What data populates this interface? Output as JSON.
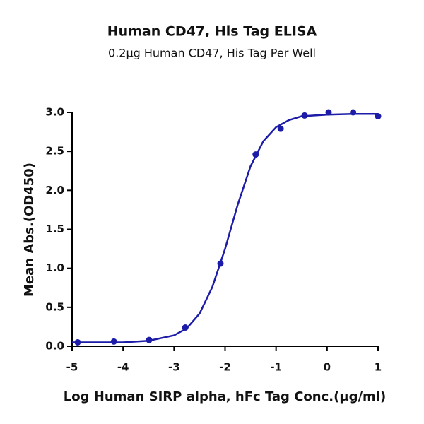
{
  "chart_data": {
    "type": "scatter",
    "title": "Human CD47, His Tag ELISA",
    "subtitle": "0.2μg Human CD47, His Tag Per Well",
    "x_label": "Log Human SIRP alpha, hFc Tag Conc.(μg/ml)",
    "y_label": "Mean Abs.(OD450)",
    "color": "#1c1ca8",
    "x": [
      -4.89,
      -4.18,
      -3.49,
      -2.78,
      -2.09,
      -1.4,
      -0.91,
      -0.44,
      0.03,
      0.51,
      1.0
    ],
    "values": [
      0.05,
      0.06,
      0.08,
      0.24,
      1.06,
      2.46,
      2.79,
      2.96,
      3.0,
      3.0,
      2.95
    ],
    "fit": {
      "x": [
        -5,
        -4.5,
        -4,
        -3.5,
        -3,
        -2.75,
        -2.5,
        -2.25,
        -2,
        -1.75,
        -1.5,
        -1.25,
        -1,
        -0.75,
        -0.5,
        -0.25,
        0,
        0.5,
        1
      ],
      "values": [
        0.05,
        0.05,
        0.05,
        0.07,
        0.14,
        0.23,
        0.42,
        0.76,
        1.25,
        1.82,
        2.31,
        2.63,
        2.81,
        2.9,
        2.95,
        2.96,
        2.97,
        2.98,
        2.98
      ]
    },
    "xlim": [
      -5,
      1
    ],
    "xticks": [
      -5,
      -4,
      -3,
      -2,
      -1,
      0,
      1
    ],
    "ylim": [
      0,
      3
    ],
    "yticks": [
      {
        "value": 0,
        "label": "0.0"
      },
      {
        "value": 0.5,
        "label": "0.5"
      },
      {
        "value": 1,
        "label": "1.0"
      },
      {
        "value": 1.5,
        "label": "1.5"
      },
      {
        "value": 2,
        "label": "2.0"
      },
      {
        "value": 2.5,
        "label": "2.5"
      },
      {
        "value": 3,
        "label": "3.0"
      }
    ]
  }
}
